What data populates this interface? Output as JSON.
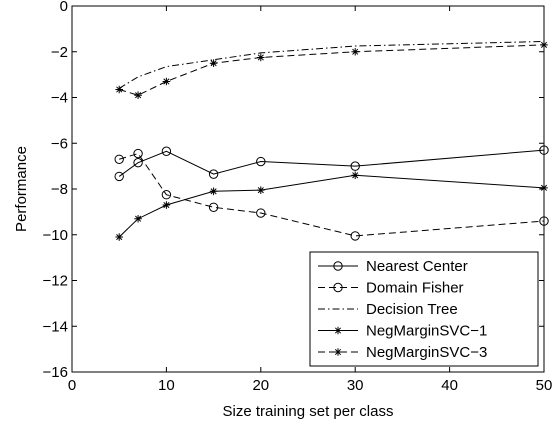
{
  "chart_data": {
    "type": "line",
    "title": "",
    "xlabel": "Size training set per class",
    "ylabel": "Performance",
    "xlim": [
      0,
      50
    ],
    "ylim": [
      -16,
      0
    ],
    "xticks": [
      0,
      10,
      20,
      30,
      40,
      50
    ],
    "yticks": [
      -16,
      -14,
      -12,
      -10,
      -8,
      -6,
      -4,
      -2,
      0
    ],
    "grid": false,
    "legend_position": "bottom-right",
    "series": [
      {
        "name": "Nearest Center",
        "x": [
          5,
          7,
          10,
          15,
          20,
          30,
          50
        ],
        "y": [
          -7.45,
          -6.85,
          -6.35,
          -7.35,
          -6.8,
          -7.0,
          -6.3
        ],
        "line": "solid",
        "marker": "circle"
      },
      {
        "name": "Domain Fisher",
        "x": [
          5,
          7,
          10,
          15,
          20,
          30,
          50
        ],
        "y": [
          -6.7,
          -6.45,
          -8.25,
          -8.8,
          -9.05,
          -10.05,
          -9.4
        ],
        "line": "dashed",
        "marker": "circle"
      },
      {
        "name": "Decision Tree",
        "x": [
          5,
          7,
          10,
          15,
          20,
          30,
          50
        ],
        "y": [
          -3.6,
          -3.1,
          -2.65,
          -2.35,
          -2.05,
          -1.75,
          -1.55
        ],
        "line": "dashdot",
        "marker": "none"
      },
      {
        "name": "NegMarginSVC−1",
        "x": [
          5,
          7,
          10,
          15,
          20,
          30,
          50
        ],
        "y": [
          -10.1,
          -9.3,
          -8.7,
          -8.1,
          -8.05,
          -7.4,
          -7.95
        ],
        "line": "solid",
        "marker": "star"
      },
      {
        "name": "NegMarginSVC−3",
        "x": [
          5,
          7,
          10,
          15,
          20,
          30,
          50
        ],
        "y": [
          -3.65,
          -3.9,
          -3.3,
          -2.5,
          -2.25,
          -2.0,
          -1.7
        ],
        "line": "dashed",
        "marker": "star"
      }
    ]
  }
}
